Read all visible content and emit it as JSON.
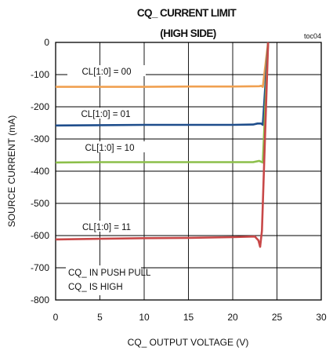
{
  "chart_data": {
    "type": "line",
    "title": "CQ_ CURRENT LIMIT",
    "subtitle": "(HIGH SIDE)",
    "tag": "toc04",
    "xlabel": "CQ_ OUTPUT VOLTAGE (V)",
    "ylabel": "SOURCE CURRENT (mA)",
    "xlim": [
      0,
      30
    ],
    "ylim": [
      -800,
      0
    ],
    "xticks": [
      "0",
      "5",
      "10",
      "15",
      "20",
      "25",
      "30"
    ],
    "yticks": [
      "0",
      "-100",
      "-200",
      "-300",
      "-400",
      "-500",
      "-600",
      "-700",
      "-800"
    ],
    "grid": true,
    "series": [
      {
        "name": "CL[1:0] = 00",
        "color": "#f0a050",
        "x": [
          0,
          5,
          10,
          15,
          20,
          23.0,
          23.2,
          23.4,
          24.0
        ],
        "y": [
          -138,
          -138,
          -138,
          -137,
          -137,
          -136,
          -135,
          -138,
          0
        ]
      },
      {
        "name": "CL[1:0] = 01",
        "color": "#1f4e8c",
        "x": [
          0,
          5,
          10,
          15,
          20,
          22.3,
          22.8,
          23.2,
          23.4,
          24.0
        ],
        "y": [
          -258,
          -257,
          -256,
          -256,
          -256,
          -255,
          -252,
          -252,
          -256,
          0
        ]
      },
      {
        "name": "CL[1:0] = 10",
        "color": "#8cbf4a",
        "x": [
          0,
          5,
          10,
          15,
          20,
          22.3,
          23.0,
          23.4,
          24.0
        ],
        "y": [
          -373,
          -372,
          -372,
          -372,
          -372,
          -372,
          -368,
          -373,
          0
        ]
      },
      {
        "name": "CL[1:0] = 11",
        "color": "#c84848",
        "x": [
          0,
          5,
          10,
          15,
          20,
          22.5,
          22.9,
          23.1,
          23.3,
          24.0
        ],
        "y": [
          -612,
          -610,
          -608,
          -607,
          -605,
          -603,
          -615,
          -635,
          -585,
          0
        ]
      }
    ],
    "annotations": [
      "CQ_ IN PUSH PULL",
      "CQ_ IS HIGH"
    ]
  }
}
